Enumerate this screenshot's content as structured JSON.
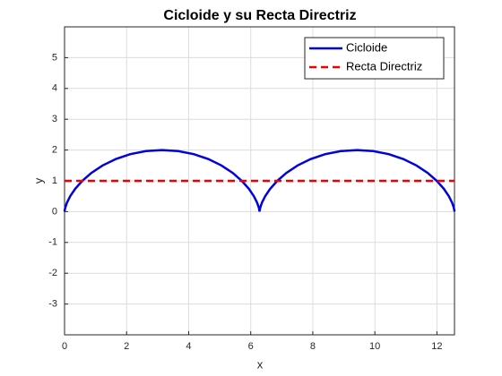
{
  "chart_data": {
    "type": "line",
    "title": "Cicloide y su Recta Directriz",
    "x_label": "x",
    "y_label": "y",
    "xlim": [
      0,
      12.566
    ],
    "ylim": [
      -4,
      6
    ],
    "xticks": [
      0,
      2,
      4,
      6,
      8,
      10,
      12
    ],
    "yticks": [
      -3,
      -2,
      -1,
      0,
      1,
      2,
      3,
      4,
      5
    ],
    "grid": true,
    "legend": "upper right",
    "series": [
      {
        "name": "Cicloide",
        "color": "#0000e0",
        "dash": "solid",
        "x": [
          0,
          0.003,
          0.024,
          0.078,
          0.181,
          0.343,
          0.571,
          0.867,
          1.228,
          1.649,
          2.118,
          2.621,
          3.142,
          3.662,
          4.165,
          4.634,
          5.055,
          5.417,
          5.712,
          5.94,
          6.102,
          6.205,
          6.26,
          6.28,
          6.283,
          6.286,
          6.307,
          6.361,
          6.464,
          6.626,
          6.854,
          7.15,
          7.511,
          7.932,
          8.401,
          8.904,
          9.425,
          9.945,
          10.448,
          10.917,
          11.338,
          11.7,
          11.995,
          12.223,
          12.385,
          12.488,
          12.543,
          12.563,
          12.566
        ],
        "values": [
          0,
          0.034,
          0.134,
          0.293,
          0.5,
          0.741,
          1,
          1.259,
          1.5,
          1.707,
          1.866,
          1.966,
          2,
          1.966,
          1.866,
          1.707,
          1.5,
          1.259,
          1,
          0.741,
          0.5,
          0.293,
          0.134,
          0.034,
          0,
          0.034,
          0.134,
          0.293,
          0.5,
          0.741,
          1,
          1.259,
          1.5,
          1.707,
          1.866,
          1.966,
          2,
          1.966,
          1.866,
          1.707,
          1.5,
          1.259,
          1,
          0.741,
          0.5,
          0.293,
          0.134,
          0.034,
          0
        ]
      },
      {
        "name": "Recta Directriz",
        "color": "#ee0000",
        "dash": "dashed",
        "x": [
          0,
          12.566
        ],
        "values": [
          1,
          1
        ]
      }
    ]
  }
}
